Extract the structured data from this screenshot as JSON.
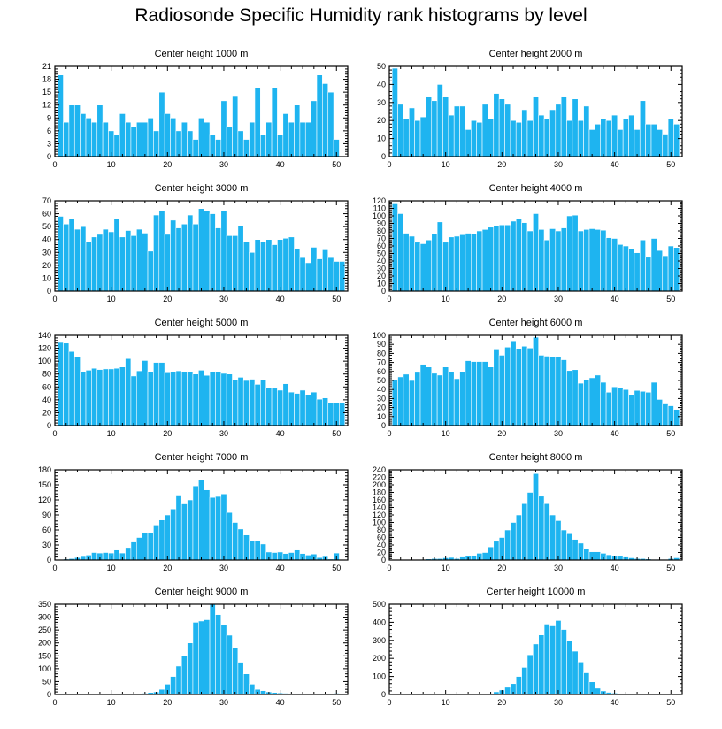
{
  "title": "Radiosonde Specific Humidity rank histograms by level",
  "colors": {
    "bar": "#1eb4f0",
    "bar_edge": "#ffffff",
    "axis": "#000000"
  },
  "chart_data": [
    {
      "type": "bar",
      "title": "Center height 1000 m",
      "xlim": [
        0,
        52
      ],
      "xticks": [
        0,
        10,
        20,
        30,
        40,
        50
      ],
      "ylim": [
        0,
        21
      ],
      "yticks": [
        0,
        3,
        6,
        9,
        12,
        15,
        18,
        21
      ],
      "values": [
        19,
        8,
        12,
        12,
        10,
        9,
        8,
        12,
        8,
        6,
        5,
        10,
        8,
        7,
        8,
        8,
        9,
        6,
        15,
        10,
        9,
        6,
        8,
        6,
        4,
        9,
        8,
        5,
        4,
        13,
        7,
        14,
        6,
        4,
        8,
        16,
        5,
        8,
        16,
        5,
        10,
        8,
        12,
        8,
        8,
        13,
        19,
        17,
        15,
        4
      ]
    },
    {
      "type": "bar",
      "title": "Center height 2000 m",
      "xlim": [
        0,
        52
      ],
      "xticks": [
        0,
        10,
        20,
        30,
        40,
        50
      ],
      "ylim": [
        0,
        50
      ],
      "yticks": [
        0,
        10,
        20,
        30,
        40,
        50
      ],
      "values": [
        49,
        29,
        21,
        27,
        20,
        22,
        33,
        31,
        40,
        33,
        23,
        28,
        28,
        15,
        20,
        19,
        29,
        21,
        35,
        32,
        29,
        20,
        19,
        26,
        20,
        33,
        23,
        21,
        26,
        29,
        33,
        20,
        32,
        20,
        28,
        15,
        18,
        21,
        20,
        23,
        15,
        21,
        23,
        15,
        31,
        18,
        18,
        15,
        12,
        21,
        18
      ]
    },
    {
      "type": "bar",
      "title": "Center height 3000 m",
      "xlim": [
        0,
        52
      ],
      "xticks": [
        0,
        10,
        20,
        30,
        40,
        50
      ],
      "ylim": [
        0,
        70
      ],
      "yticks": [
        0,
        10,
        20,
        30,
        40,
        50,
        60,
        70
      ],
      "values": [
        58,
        52,
        56,
        48,
        50,
        38,
        42,
        44,
        48,
        46,
        56,
        42,
        47,
        43,
        48,
        45,
        31,
        59,
        62,
        44,
        55,
        49,
        52,
        59,
        52,
        64,
        62,
        60,
        49,
        62,
        43,
        43,
        51,
        38,
        30,
        40,
        38,
        40,
        36,
        40,
        41,
        42,
        33,
        26,
        22,
        34,
        25,
        32,
        26,
        23,
        23
      ]
    },
    {
      "type": "bar",
      "title": "Center height 4000 m",
      "xlim": [
        0,
        52
      ],
      "xticks": [
        0,
        10,
        20,
        30,
        40,
        50
      ],
      "ylim": [
        0,
        120
      ],
      "yticks": [
        0,
        10,
        20,
        30,
        40,
        50,
        60,
        70,
        80,
        90,
        100,
        110,
        120
      ],
      "values": [
        116,
        103,
        77,
        73,
        65,
        63,
        68,
        76,
        92,
        65,
        72,
        73,
        75,
        77,
        76,
        80,
        82,
        85,
        87,
        88,
        88,
        93,
        96,
        91,
        80,
        103,
        82,
        68,
        83,
        80,
        84,
        100,
        101,
        80,
        82,
        83,
        82,
        81,
        71,
        70,
        62,
        60,
        56,
        51,
        68,
        45,
        70,
        54,
        47,
        60,
        58,
        49
      ]
    },
    {
      "type": "bar",
      "title": "Center height 5000 m",
      "xlim": [
        0,
        52
      ],
      "xticks": [
        0,
        10,
        20,
        30,
        40,
        50
      ],
      "ylim": [
        0,
        140
      ],
      "yticks": [
        0,
        20,
        40,
        60,
        80,
        100,
        120,
        140
      ],
      "values": [
        129,
        128,
        115,
        107,
        84,
        86,
        89,
        87,
        88,
        88,
        89,
        91,
        104,
        77,
        85,
        101,
        84,
        98,
        98,
        82,
        84,
        85,
        83,
        84,
        80,
        86,
        78,
        84,
        84,
        81,
        80,
        71,
        75,
        70,
        72,
        64,
        71,
        59,
        58,
        55,
        65,
        52,
        50,
        55,
        48,
        52,
        41,
        43,
        36,
        36,
        35
      ]
    },
    {
      "type": "bar",
      "title": "Center height 6000 m",
      "xlim": [
        0,
        52
      ],
      "xticks": [
        0,
        10,
        20,
        30,
        40,
        50
      ],
      "ylim": [
        0,
        100
      ],
      "yticks": [
        0,
        10,
        20,
        30,
        40,
        50,
        60,
        70,
        80,
        90,
        100
      ],
      "values": [
        51,
        54,
        57,
        50,
        59,
        68,
        65,
        58,
        56,
        65,
        60,
        52,
        60,
        72,
        71,
        71,
        71,
        65,
        84,
        78,
        87,
        93,
        85,
        88,
        86,
        98,
        78,
        77,
        76,
        76,
        73,
        61,
        62,
        47,
        51,
        53,
        56,
        48,
        37,
        43,
        42,
        40,
        34,
        39,
        38,
        37,
        48,
        29,
        24,
        22,
        18,
        28
      ]
    },
    {
      "type": "bar",
      "title": "Center height 7000 m",
      "xlim": [
        0,
        52
      ],
      "xticks": [
        0,
        10,
        20,
        30,
        40,
        50
      ],
      "ylim": [
        0,
        180
      ],
      "yticks": [
        0,
        30,
        60,
        90,
        120,
        150,
        180
      ],
      "values": [
        0,
        2,
        3,
        5,
        7,
        10,
        15,
        14,
        15,
        14,
        20,
        14,
        25,
        36,
        45,
        55,
        55,
        70,
        80,
        90,
        102,
        128,
        112,
        120,
        148,
        160,
        140,
        125,
        127,
        132,
        95,
        75,
        62,
        50,
        38,
        38,
        32,
        16,
        15,
        16,
        13,
        15,
        20,
        13,
        10,
        12,
        5,
        7,
        2,
        14,
        0
      ]
    },
    {
      "type": "bar",
      "title": "Center height 8000 m",
      "xlim": [
        0,
        52
      ],
      "xticks": [
        0,
        10,
        20,
        30,
        40,
        50
      ],
      "ylim": [
        0,
        240
      ],
      "yticks": [
        0,
        20,
        40,
        60,
        80,
        100,
        120,
        140,
        160,
        180,
        200,
        220,
        240
      ],
      "values": [
        0,
        0,
        0,
        0,
        0,
        2,
        3,
        4,
        4,
        6,
        7,
        4,
        8,
        10,
        12,
        18,
        20,
        35,
        50,
        60,
        80,
        100,
        120,
        150,
        180,
        230,
        170,
        150,
        120,
        105,
        80,
        70,
        55,
        45,
        30,
        22,
        22,
        18,
        14,
        10,
        10,
        8,
        6,
        4,
        4,
        3,
        2,
        2,
        2,
        4,
        6,
        2
      ]
    },
    {
      "type": "bar",
      "title": "Center height 9000 m",
      "xlim": [
        0,
        52
      ],
      "xticks": [
        0,
        10,
        20,
        30,
        40,
        50
      ],
      "ylim": [
        0,
        350
      ],
      "yticks": [
        0,
        50,
        100,
        150,
        200,
        250,
        300,
        350
      ],
      "values": [
        0,
        0,
        0,
        0,
        0,
        0,
        0,
        0,
        0,
        0,
        0,
        0,
        0,
        0,
        2,
        5,
        8,
        10,
        20,
        40,
        70,
        110,
        150,
        200,
        280,
        285,
        290,
        350,
        310,
        270,
        230,
        180,
        125,
        80,
        40,
        20,
        15,
        10,
        8,
        6,
        5,
        4,
        4,
        3,
        3,
        2,
        2,
        2,
        3,
        5,
        2
      ]
    },
    {
      "type": "bar",
      "title": "Center height 10000 m",
      "xlim": [
        0,
        52
      ],
      "xticks": [
        0,
        10,
        20,
        30,
        40,
        50
      ],
      "ylim": [
        0,
        500
      ],
      "yticks": [
        0,
        100,
        200,
        300,
        400,
        500
      ],
      "values": [
        0,
        0,
        0,
        0,
        0,
        0,
        0,
        0,
        0,
        0,
        0,
        0,
        0,
        0,
        0,
        0,
        0,
        5,
        15,
        25,
        40,
        60,
        100,
        150,
        220,
        280,
        330,
        390,
        380,
        410,
        360,
        300,
        240,
        180,
        120,
        70,
        35,
        20,
        12,
        8,
        6,
        5,
        4,
        3,
        3,
        2,
        2,
        2,
        2,
        3,
        2
      ]
    }
  ]
}
